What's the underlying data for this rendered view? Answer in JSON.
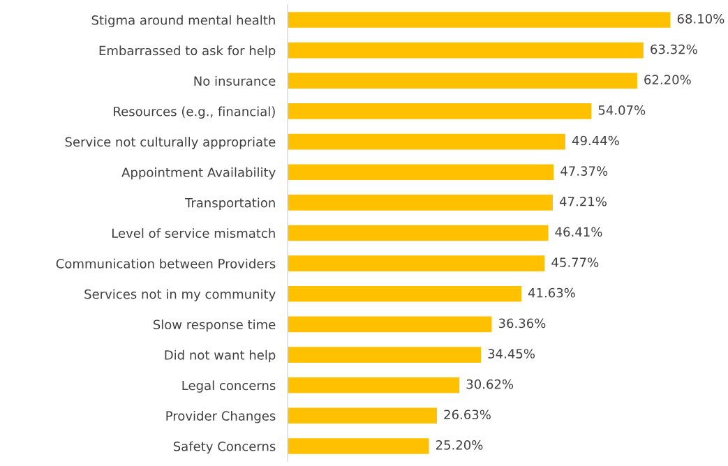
{
  "chart_data": {
    "type": "bar",
    "orientation": "horizontal",
    "categories": [
      "Stigma around mental health",
      "Embarrassed to ask for help",
      "No insurance",
      "Resources (e.g., financial)",
      "Service not culturally appropriate",
      "Appointment Availability",
      "Transportation",
      "Level of service mismatch",
      "Communication between Providers",
      "Services not in my community",
      "Slow response time",
      "Did not want help",
      "Legal concerns",
      "Provider Changes",
      "Safety Concerns"
    ],
    "values": [
      68.1,
      63.32,
      62.2,
      54.07,
      49.44,
      47.37,
      47.21,
      46.41,
      45.77,
      41.63,
      36.36,
      34.45,
      30.62,
      26.63,
      25.2
    ],
    "value_labels": [
      "68.10%",
      "63.32%",
      "62.20%",
      "54.07%",
      "49.44%",
      "47.37%",
      "47.21%",
      "46.41%",
      "45.77%",
      "41.63%",
      "36.36%",
      "34.45%",
      "30.62%",
      "26.63%",
      "25.20%"
    ],
    "color": "#ffc000",
    "grid": false,
    "legend": false
  }
}
